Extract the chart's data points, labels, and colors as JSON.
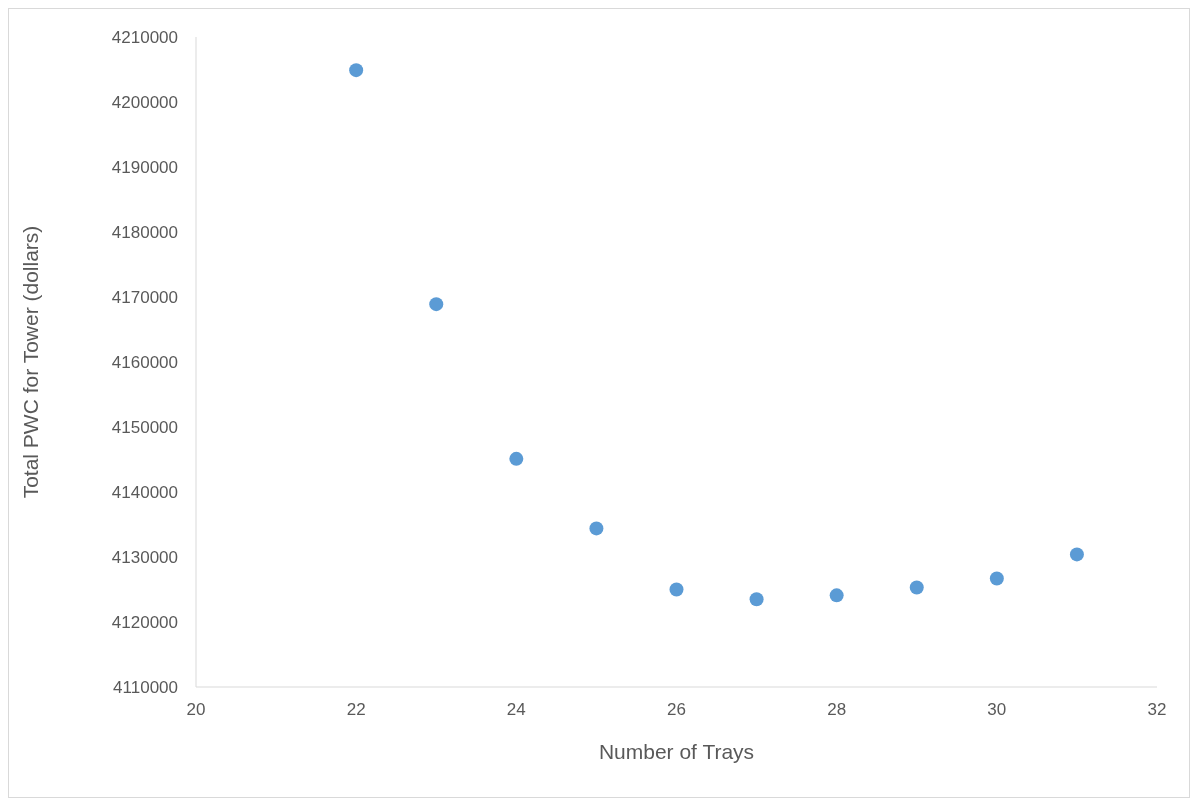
{
  "chart_data": {
    "type": "scatter",
    "xlabel": "Number of Trays",
    "ylabel": "Total PWC for Tower (dollars)",
    "x": [
      22,
      23,
      24,
      25,
      26,
      27,
      28,
      29,
      30,
      31
    ],
    "series": [
      {
        "color": "#5b9bd5",
        "values": [
          4204900,
          4168900,
          4145100,
          4134400,
          4125000,
          4123500,
          4124100,
          4125300,
          4126700,
          4130400
        ]
      }
    ],
    "xlim": [
      20,
      32
    ],
    "xticks": [
      20,
      22,
      24,
      26,
      28,
      30,
      32
    ],
    "ylim": [
      4110000,
      4210000
    ],
    "yticks": [
      4110000,
      4120000,
      4130000,
      4140000,
      4150000,
      4160000,
      4170000,
      4180000,
      4190000,
      4200000,
      4210000
    ],
    "grid": false,
    "legend": false,
    "marker": "circle"
  }
}
